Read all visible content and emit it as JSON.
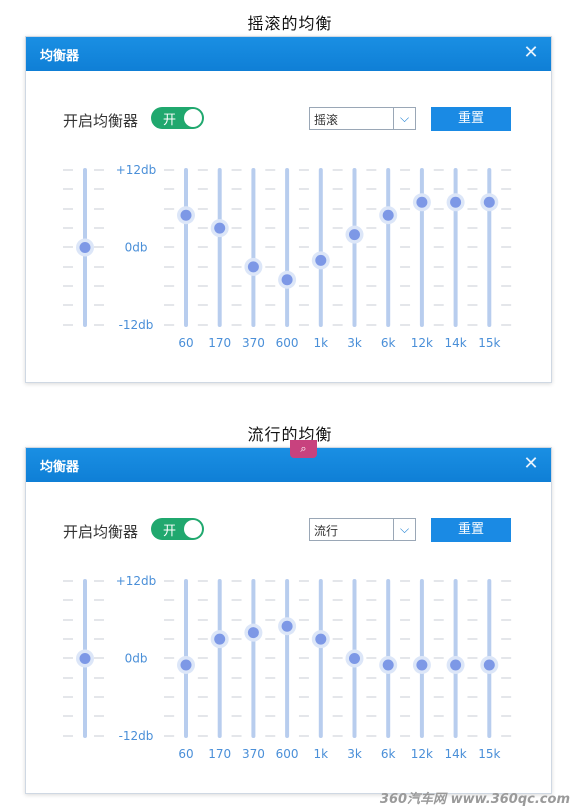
{
  "captions": [
    "摇滚的均衡",
    "流行的均衡"
  ],
  "panels": [
    {
      "title": "均衡器",
      "enable_label": "开启均衡器",
      "toggle_label": "开",
      "preset": "摇滚",
      "reset_label": "重置",
      "scale": {
        "top": "+12db",
        "mid": "0db",
        "bottom": "-12db"
      },
      "preamp": 0,
      "bands": [
        {
          "label": "60",
          "value": 5
        },
        {
          "label": "170",
          "value": 3
        },
        {
          "label": "370",
          "value": -3
        },
        {
          "label": "600",
          "value": -5
        },
        {
          "label": "1k",
          "value": -2
        },
        {
          "label": "3k",
          "value": 2
        },
        {
          "label": "6k",
          "value": 5
        },
        {
          "label": "12k",
          "value": 7
        },
        {
          "label": "14k",
          "value": 7
        },
        {
          "label": "15k",
          "value": 7
        }
      ]
    },
    {
      "title": "均衡器",
      "enable_label": "开启均衡器",
      "toggle_label": "开",
      "preset": "流行",
      "reset_label": "重置",
      "scale": {
        "top": "+12db",
        "mid": "0db",
        "bottom": "-12db"
      },
      "preamp": 0,
      "bands": [
        {
          "label": "60",
          "value": -1
        },
        {
          "label": "170",
          "value": 3
        },
        {
          "label": "370",
          "value": 4
        },
        {
          "label": "600",
          "value": 5
        },
        {
          "label": "1k",
          "value": 3
        },
        {
          "label": "3k",
          "value": 0
        },
        {
          "label": "6k",
          "value": -1
        },
        {
          "label": "12k",
          "value": -1
        },
        {
          "label": "14k",
          "value": -1
        },
        {
          "label": "15k",
          "value": -1
        }
      ]
    }
  ],
  "watermark": "360汽车网 www.360qc.com",
  "colors": {
    "accent": "#1a8ae4",
    "toggle_on": "#20a86e",
    "slider_track": "#b8cdee",
    "knob": "#7d98e6"
  }
}
